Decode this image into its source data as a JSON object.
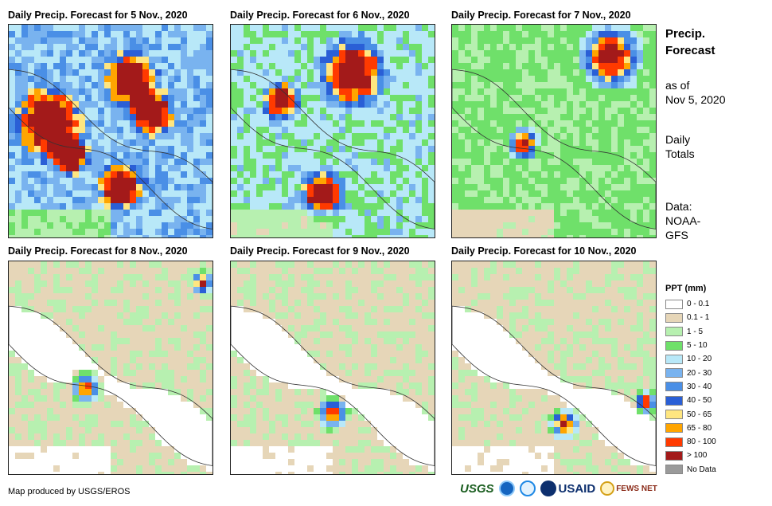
{
  "panels": [
    {
      "title": "Daily Precip. Forecast for 5 Nov., 2020",
      "intensity": "very-heavy"
    },
    {
      "title": "Daily Precip. Forecast for 6 Nov., 2020",
      "intensity": "heavy"
    },
    {
      "title": "Daily Precip. Forecast for 7 Nov., 2020",
      "intensity": "moderate"
    },
    {
      "title": "Daily Precip. Forecast for 8 Nov., 2020",
      "intensity": "light"
    },
    {
      "title": "Daily Precip. Forecast for 9 Nov., 2020",
      "intensity": "light"
    },
    {
      "title": "Daily Precip. Forecast for 10 Nov., 2020",
      "intensity": "light"
    }
  ],
  "sidebar": {
    "heading_line1": "Precip.",
    "heading_line2": "Forecast",
    "asof_line1": "as of",
    "asof_line2": "Nov 5, 2020",
    "totals_line1": "Daily",
    "totals_line2": "Totals",
    "data_line1": "Data:",
    "data_line2": "NOAA-",
    "data_line3": "GFS"
  },
  "legend": {
    "title": "PPT (mm)",
    "items": [
      {
        "label": "0 - 0.1",
        "color": "#ffffff"
      },
      {
        "label": "0.1 - 1",
        "color": "#e6d6b8"
      },
      {
        "label": "1 - 5",
        "color": "#b7f0b0"
      },
      {
        "label": "5 - 10",
        "color": "#6fe06a"
      },
      {
        "label": "10 - 20",
        "color": "#b8e8f8"
      },
      {
        "label": "20 - 30",
        "color": "#79b3ef"
      },
      {
        "label": "30 - 40",
        "color": "#4a8fe6"
      },
      {
        "label": "40 - 50",
        "color": "#2a5fd6"
      },
      {
        "label": "50 - 65",
        "color": "#ffe680"
      },
      {
        "label": "65 - 80",
        "color": "#ffa500"
      },
      {
        "label": "80 - 100",
        "color": "#ff3a00"
      },
      {
        "label": "> 100",
        "color": "#a31a1a"
      },
      {
        "label": "No Data",
        "color": "#9a9a9a"
      }
    ]
  },
  "footer": {
    "credit": "Map produced by USGS/EROS",
    "logo_usgs": "USGS",
    "logo_usaid": "USAID",
    "logo_fews": "FEWS NET"
  }
}
